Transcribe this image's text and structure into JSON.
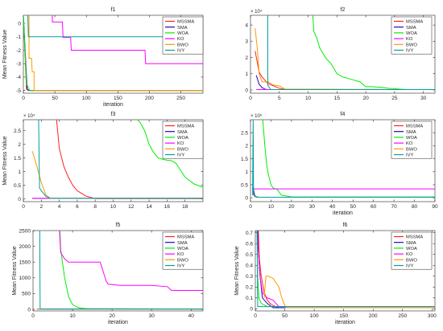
{
  "chart_data": [
    {
      "type": "line",
      "title": "f1",
      "xlabel": "iteration",
      "ylabel": "Mean Fitness Value",
      "xlim": [
        0,
        285
      ],
      "ylim": [
        -5.2,
        0.6
      ],
      "xticks": [
        0,
        50,
        100,
        150,
        200,
        250
      ],
      "yticks": [
        -5,
        -4,
        -3,
        -2,
        -1,
        0
      ],
      "exponent": "",
      "legend": "top-right",
      "series": [
        {
          "name": "MSSMA",
          "color": "#ff2020",
          "x": [
            0,
            5,
            8,
            285
          ],
          "y": [
            0.6,
            -4.9,
            -5,
            -5
          ]
        },
        {
          "name": "SMA",
          "color": "#1f00c8",
          "x": [
            0,
            6,
            9,
            285
          ],
          "y": [
            0.6,
            -4.9,
            -5,
            -5
          ]
        },
        {
          "name": "WOA",
          "color": "#00ee00",
          "x": [
            0,
            5,
            10,
            285
          ],
          "y": [
            0.6,
            -4.5,
            -5,
            -5
          ]
        },
        {
          "name": "KO",
          "color": "#ff00ff",
          "x": [
            45,
            46,
            46,
            62,
            63,
            75,
            76,
            193,
            194,
            285
          ],
          "y": [
            0.6,
            0.6,
            0.1,
            0.1,
            -1.05,
            -1.05,
            -2,
            -2,
            -3,
            -3
          ]
        },
        {
          "name": "BWO",
          "color": "#ff9900",
          "x": [
            8,
            9,
            9,
            13,
            14,
            17,
            17,
            285
          ],
          "y": [
            0.6,
            0.6,
            -2.6,
            -2.6,
            -3.6,
            -3.6,
            -5,
            -5
          ]
        },
        {
          "name": "IVY",
          "color": "#00a0a0",
          "x": [
            4,
            4,
            7,
            8,
            285
          ],
          "y": [
            0.6,
            0.6,
            0.6,
            -1.0,
            -1.0
          ]
        }
      ]
    },
    {
      "type": "line",
      "title": "f2",
      "xlabel": "",
      "ylabel": "",
      "xlim": [
        0,
        32
      ],
      "ylim": [
        -0.2,
        4.6
      ],
      "xticks": [
        0,
        5,
        10,
        15,
        20,
        25,
        30
      ],
      "yticks": [
        0,
        1,
        2,
        3,
        4
      ],
      "exponent": "× 10⁴",
      "legend": "top-right",
      "series": [
        {
          "name": "MSSMA",
          "color": "#ff2020",
          "x": [
            0.8,
            1.5,
            2,
            3,
            4,
            5,
            6,
            32
          ],
          "y": [
            2.4,
            1.1,
            0.8,
            0.4,
            0.25,
            0.1,
            0.02,
            0.02
          ]
        },
        {
          "name": "SMA",
          "color": "#1f00c8",
          "x": [
            1,
            1.5,
            2,
            2.5,
            3,
            32
          ],
          "y": [
            0.9,
            0.35,
            0.15,
            0.05,
            0.02,
            0.02
          ]
        },
        {
          "name": "WOA",
          "color": "#00ee00",
          "x": [
            10.8,
            11,
            11.5,
            12,
            12.5,
            13,
            14,
            15,
            16,
            17,
            18,
            19,
            20,
            21,
            22,
            23,
            24,
            25,
            26,
            27,
            28,
            32
          ],
          "y": [
            4.6,
            3.6,
            3.2,
            2.6,
            2.3,
            2.0,
            1.6,
            1.0,
            0.8,
            0.7,
            0.6,
            0.5,
            0.2,
            0.2,
            0.18,
            0.15,
            0.1,
            0.08,
            0.05,
            0.03,
            0.02,
            0.02
          ]
        },
        {
          "name": "KO",
          "color": "#ff00ff",
          "x": [
            1,
            32
          ],
          "y": [
            0.02,
            0.02
          ]
        },
        {
          "name": "BWO",
          "color": "#ff9900",
          "x": [
            0.8,
            1.2,
            1.5,
            2,
            3,
            4,
            5,
            6,
            32
          ],
          "y": [
            3.8,
            2.5,
            1.0,
            0.5,
            0.5,
            0.3,
            0.25,
            0.05,
            0.02
          ]
        },
        {
          "name": "IVY",
          "color": "#00a0a0",
          "x": [
            2.8,
            3,
            3,
            3.5,
            32
          ],
          "y": [
            4.6,
            4.6,
            0.3,
            0.02,
            0.02
          ]
        }
      ]
    },
    {
      "type": "line",
      "title": "f3",
      "xlabel": "",
      "ylabel": "Mean Fitness Value",
      "xlim": [
        0,
        20
      ],
      "ylim": [
        -0.1,
        2.9
      ],
      "xticks": [
        0,
        2,
        4,
        6,
        8,
        10,
        12,
        14,
        16,
        18
      ],
      "yticks": [
        0,
        0.5,
        1,
        1.5,
        2,
        2.5
      ],
      "exponent": "× 10⁴",
      "legend": "top-right",
      "series": [
        {
          "name": "MSSMA",
          "color": "#ff2020",
          "x": [
            3.7,
            4,
            4.5,
            5,
            5.5,
            6,
            6.5,
            7,
            8,
            20
          ],
          "y": [
            2.9,
            1.85,
            1.2,
            0.8,
            0.5,
            0.3,
            0.2,
            0.1,
            0.01,
            0.01
          ]
        },
        {
          "name": "SMA",
          "color": "#1f00c8",
          "x": [
            1,
            20
          ],
          "y": [
            0.02,
            0.02
          ]
        },
        {
          "name": "WOA",
          "color": "#00ee00",
          "x": [
            12.7,
            13,
            13.5,
            14,
            14.5,
            15,
            15.5,
            16,
            16.5,
            17,
            18,
            19,
            20
          ],
          "y": [
            2.9,
            2.8,
            2.5,
            2.0,
            1.7,
            1.5,
            1.45,
            1.42,
            1.4,
            1.3,
            0.8,
            0.55,
            0.42
          ]
        },
        {
          "name": "KO",
          "color": "#ff00ff",
          "x": [
            1,
            20
          ],
          "y": [
            0.02,
            0.02
          ]
        },
        {
          "name": "BWO",
          "color": "#ff9900",
          "x": [
            1,
            1.5,
            2,
            2.5,
            3,
            20
          ],
          "y": [
            1.75,
            1.2,
            0.6,
            0.15,
            0.02,
            0.02
          ]
        },
        {
          "name": "IVY",
          "color": "#00a0a0",
          "x": [
            1.7,
            1.8,
            2,
            2.5,
            3,
            20
          ],
          "y": [
            2.9,
            0.4,
            0.3,
            0.1,
            0.02,
            0.02
          ]
        }
      ]
    },
    {
      "type": "line",
      "title": "f4",
      "xlabel": "iteration",
      "ylabel": "",
      "xlim": [
        0,
        90
      ],
      "ylim": [
        -0.15,
        3.0
      ],
      "xticks": [
        0,
        10,
        20,
        30,
        40,
        50,
        60,
        70,
        80,
        90
      ],
      "yticks": [
        0,
        0.5,
        1,
        1.5,
        2,
        2.5
      ],
      "exponent": "× 10⁵",
      "legend": "top-right",
      "series": [
        {
          "name": "MSSMA",
          "color": "#ff2020",
          "x": [
            1,
            2,
            3,
            90
          ],
          "y": [
            0.35,
            0.05,
            0.02,
            0.02
          ]
        },
        {
          "name": "SMA",
          "color": "#1f00c8",
          "x": [
            1,
            1.5,
            2,
            3,
            90
          ],
          "y": [
            0.4,
            0.3,
            0.1,
            0.02,
            0.02
          ]
        },
        {
          "name": "WOA",
          "color": "#00ee00",
          "x": [
            6,
            7,
            8,
            9,
            10,
            11,
            12,
            13,
            15,
            20,
            90
          ],
          "y": [
            3.0,
            2.0,
            1.2,
            0.8,
            0.5,
            0.38,
            0.35,
            0.33,
            0.1,
            0.03,
            0.03
          ]
        },
        {
          "name": "KO",
          "color": "#ff00ff",
          "x": [
            1,
            90
          ],
          "y": [
            0.34,
            0.34
          ]
        },
        {
          "name": "BWO",
          "color": "#ff9900",
          "x": [
            1,
            2,
            4,
            90
          ],
          "y": [
            0.15,
            0.08,
            0.02,
            0.02
          ]
        },
        {
          "name": "IVY",
          "color": "#00a0a0",
          "x": [
            1,
            1.3,
            1.5,
            3,
            90
          ],
          "y": [
            0.1,
            3.0,
            0.1,
            0.02,
            0.02
          ]
        }
      ]
    },
    {
      "type": "line",
      "title": "f5",
      "xlabel": "iteration",
      "ylabel": "Mean Fitness Value",
      "xlim": [
        0,
        43
      ],
      "ylim": [
        -50,
        2500
      ],
      "xticks": [
        0,
        10,
        20,
        30,
        40
      ],
      "yticks": [
        0,
        500,
        1000,
        1500,
        2000,
        2500
      ],
      "exponent": "",
      "legend": "top-right",
      "series": [
        {
          "name": "MSSMA",
          "color": "#ff2020",
          "x": [
            1,
            43
          ],
          "y": [
            10,
            10
          ]
        },
        {
          "name": "SMA",
          "color": "#1f00c8",
          "x": [
            1,
            43
          ],
          "y": [
            10,
            10
          ]
        },
        {
          "name": "WOA",
          "color": "#00ee00",
          "x": [
            6.8,
            7,
            8,
            9,
            10,
            11,
            12,
            14,
            43
          ],
          "y": [
            2500,
            1900,
            1000,
            400,
            150,
            80,
            40,
            20,
            10
          ]
        },
        {
          "name": "KO",
          "color": "#ff00ff",
          "x": [
            6.7,
            7,
            8,
            9,
            17,
            18,
            18.5,
            19,
            22,
            30,
            34,
            35,
            43
          ],
          "y": [
            2500,
            1800,
            1600,
            1500,
            1500,
            1100,
            900,
            800,
            760,
            760,
            720,
            600,
            600
          ]
        },
        {
          "name": "BWO",
          "color": "#ff9900",
          "x": [
            1,
            43
          ],
          "y": [
            10,
            10
          ]
        },
        {
          "name": "IVY",
          "color": "#00a0a0",
          "x": [
            1.7,
            1.8,
            2,
            43
          ],
          "y": [
            2500,
            30,
            10,
            10
          ]
        }
      ]
    },
    {
      "type": "line",
      "title": "f6",
      "xlabel": "iteration",
      "ylabel": "Mean Fitness Value",
      "xlim": [
        0,
        305
      ],
      "ylim": [
        -0.02,
        0.72
      ],
      "xticks": [
        0,
        50,
        100,
        150,
        200,
        250,
        300
      ],
      "yticks": [
        0,
        0.1,
        0.2,
        0.3,
        0.4,
        0.5,
        0.6,
        0.7
      ],
      "exponent": "",
      "legend": "top-right",
      "series": [
        {
          "name": "MSSMA",
          "color": "#ff2020",
          "x": [
            5,
            7,
            10,
            15,
            20,
            25,
            30,
            40,
            305
          ],
          "y": [
            0.72,
            0.45,
            0.3,
            0.15,
            0.08,
            0.05,
            0.03,
            0.01,
            0.01
          ]
        },
        {
          "name": "SMA",
          "color": "#1f00c8",
          "x": [
            4,
            5,
            8,
            12,
            20,
            30,
            305
          ],
          "y": [
            0.72,
            0.55,
            0.3,
            0.1,
            0.05,
            0.01,
            0.01
          ]
        },
        {
          "name": "WOA",
          "color": "#00ee00",
          "x": [
            3,
            4,
            6,
            10,
            20,
            305
          ],
          "y": [
            0.72,
            0.3,
            0.1,
            0.05,
            0.02,
            0.02
          ]
        },
        {
          "name": "KO",
          "color": "#ff00ff",
          "x": [
            3,
            5,
            8,
            12,
            20,
            25,
            30,
            40,
            305
          ],
          "y": [
            0.72,
            0.55,
            0.3,
            0.15,
            0.1,
            0.09,
            0.08,
            0.02,
            0.02
          ]
        },
        {
          "name": "BWO",
          "color": "#ff9900",
          "x": [
            15,
            18,
            22,
            30,
            40,
            45,
            50,
            52,
            305
          ],
          "y": [
            0.1,
            0.3,
            0.3,
            0.28,
            0.2,
            0.1,
            0.03,
            0.01,
            0.01
          ]
        },
        {
          "name": "IVY",
          "color": "#00a0a0",
          "x": [
            3,
            4,
            5,
            305
          ],
          "y": [
            0.72,
            0.02,
            0.02,
            0.02
          ]
        }
      ]
    }
  ]
}
